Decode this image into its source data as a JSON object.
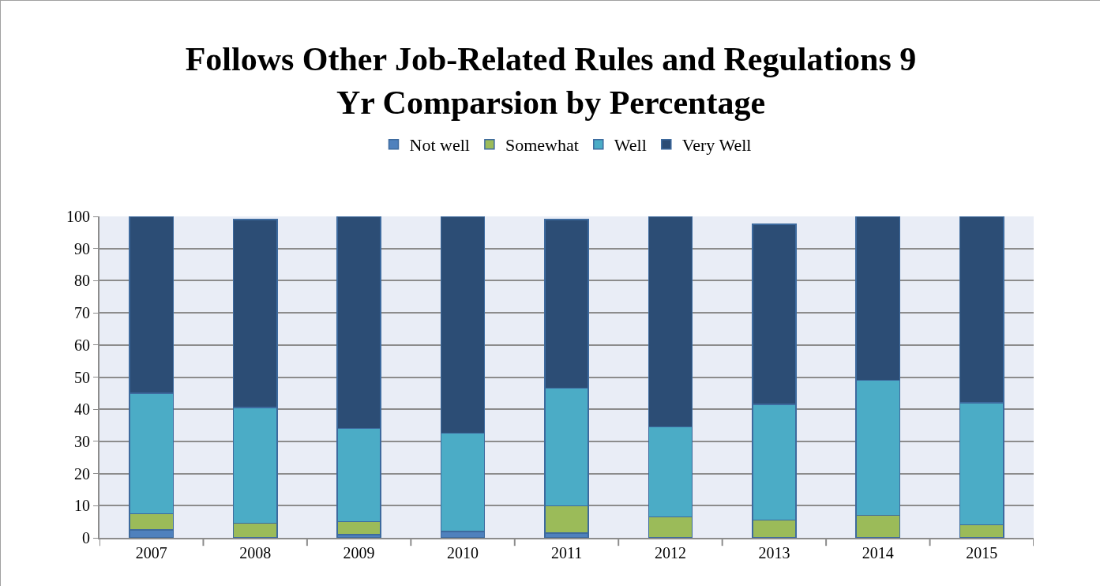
{
  "chart_data": {
    "type": "bar",
    "title": "Follows Other Job-Related Rules and Regulations 9\nYr Comparsion by Percentage",
    "categories": [
      "2007",
      "2008",
      "2009",
      "2010",
      "2011",
      "2012",
      "2013",
      "2014",
      "2015"
    ],
    "series": [
      {
        "name": "Not well",
        "color": "#4f81bd",
        "values": [
          2.5,
          0,
          1,
          2,
          1.5,
          0,
          0,
          0,
          0
        ]
      },
      {
        "name": "Somewhat",
        "color": "#9bbb59",
        "values": [
          5,
          4.5,
          4,
          0,
          8.5,
          6.5,
          5.5,
          7,
          4
        ]
      },
      {
        "name": "Well",
        "color": "#4bacc6",
        "values": [
          37.5,
          36,
          29,
          30.5,
          36.5,
          28,
          36,
          42,
          38
        ]
      },
      {
        "name": "Very Well",
        "color": "#2c4d75",
        "values": [
          55,
          58.5,
          66,
          67.5,
          52.5,
          65.5,
          56,
          51,
          58
        ]
      }
    ],
    "stacked": true,
    "ylim": [
      0,
      100
    ],
    "yticks": [
      0,
      10,
      20,
      30,
      40,
      50,
      60,
      70,
      80,
      90,
      100
    ],
    "grid": "y",
    "legend": "top"
  }
}
